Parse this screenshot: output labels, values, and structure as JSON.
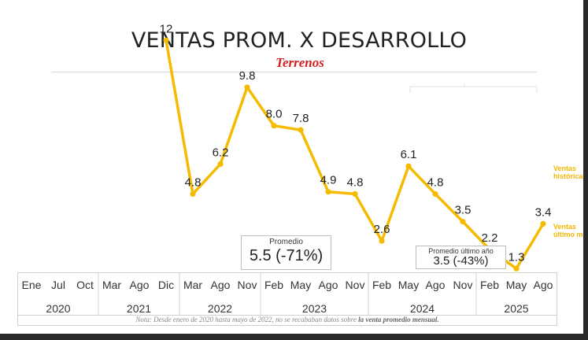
{
  "header": {
    "title": "VENTAS PROM. X DESARROLLO",
    "subtitle": "Terrenos"
  },
  "colors": {
    "line": "#f5bb00",
    "subtitle": "#d21f1f",
    "grid": "#d0d0d0"
  },
  "chart_data": {
    "type": "line",
    "title": "VENTAS PROM. X DESARROLLO",
    "subtitle": "Terrenos",
    "x": [
      "Dic 2021",
      "Mar 2022",
      "Ago 2022",
      "Nov 2022",
      "Feb 2023",
      "May 2023",
      "Ago 2023",
      "Nov 2023",
      "Feb 2024",
      "May 2024",
      "Ago 2024",
      "Nov 2024",
      "Feb 2025",
      "May 2025",
      "Ago 2025"
    ],
    "series": [
      {
        "values": [
          12,
          4.8,
          6.2,
          9.8,
          8.0,
          7.8,
          4.9,
          4.8,
          2.6,
          6.1,
          4.8,
          3.5,
          2.2,
          1.3,
          3.4
        ]
      }
    ],
    "data_labels": [
      "12",
      "4.8",
      "6.2",
      "9.8",
      "8.0",
      "7.8",
      "4.9",
      "4.8",
      "2.6",
      "6.1",
      "4.8",
      "3.5",
      "2.2",
      "1.3",
      "3.4"
    ],
    "ylim": [
      0,
      12.5
    ],
    "grid": false,
    "legend": "right"
  },
  "averages": {
    "overall": {
      "label": "Promedio",
      "value": "5.5 (-71%)"
    },
    "last_year": {
      "label": "Promedio último año",
      "value": "3.5 (-43%)"
    }
  },
  "legend_notes": [
    {
      "line1": "Ventas",
      "line2": "histórica"
    },
    {
      "line1": "Ventas",
      "line2": "último m"
    }
  ],
  "x_axis": {
    "months": [
      "Ene",
      "Jul",
      "Oct",
      "Mar",
      "Ago",
      "Dic",
      "Mar",
      "Ago",
      "Nov",
      "Feb",
      "May",
      "Ago",
      "Nov",
      "Feb",
      "May",
      "Ago",
      "Nov",
      "Feb",
      "May",
      "Ago"
    ],
    "years": [
      "2020",
      "2021",
      "2022",
      "2023",
      "2024",
      "2025"
    ]
  },
  "footnote": {
    "prefix": "Nota: Desde enero de 2020 hasta mayo de 2022, no se recababan datos sobre ",
    "emphasis": "la venta promedio mensual."
  }
}
